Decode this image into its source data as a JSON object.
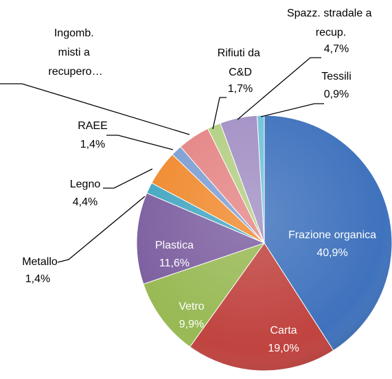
{
  "chart_data": {
    "type": "pie",
    "categories": [
      "Frazione organica",
      "Carta",
      "Vetro",
      "Plastica",
      "Metallo",
      "Legno",
      "RAEE",
      "Ingomb. misti a recupero…",
      "Rifiuti da C&D",
      "Spazz. stradale a recup.",
      "Tessili"
    ],
    "values": [
      40.9,
      19.0,
      9.9,
      11.6,
      1.4,
      4.4,
      1.4,
      4.1,
      1.7,
      4.7,
      0.9
    ],
    "value_labels": [
      "40,9%",
      "19,0%",
      "9,9%",
      "11,6%",
      "1,4%",
      "4,4%",
      "1,4%",
      null,
      "1,7%",
      "4,7%",
      "0,9%"
    ],
    "colors": [
      "#3f72bd",
      "#c0433f",
      "#98b954",
      "#7d5fa0",
      "#45a7c2",
      "#f08a2e",
      "#7e9fd3",
      "#e58585",
      "#b3cf84",
      "#a290c4",
      "#72c2da"
    ]
  }
}
